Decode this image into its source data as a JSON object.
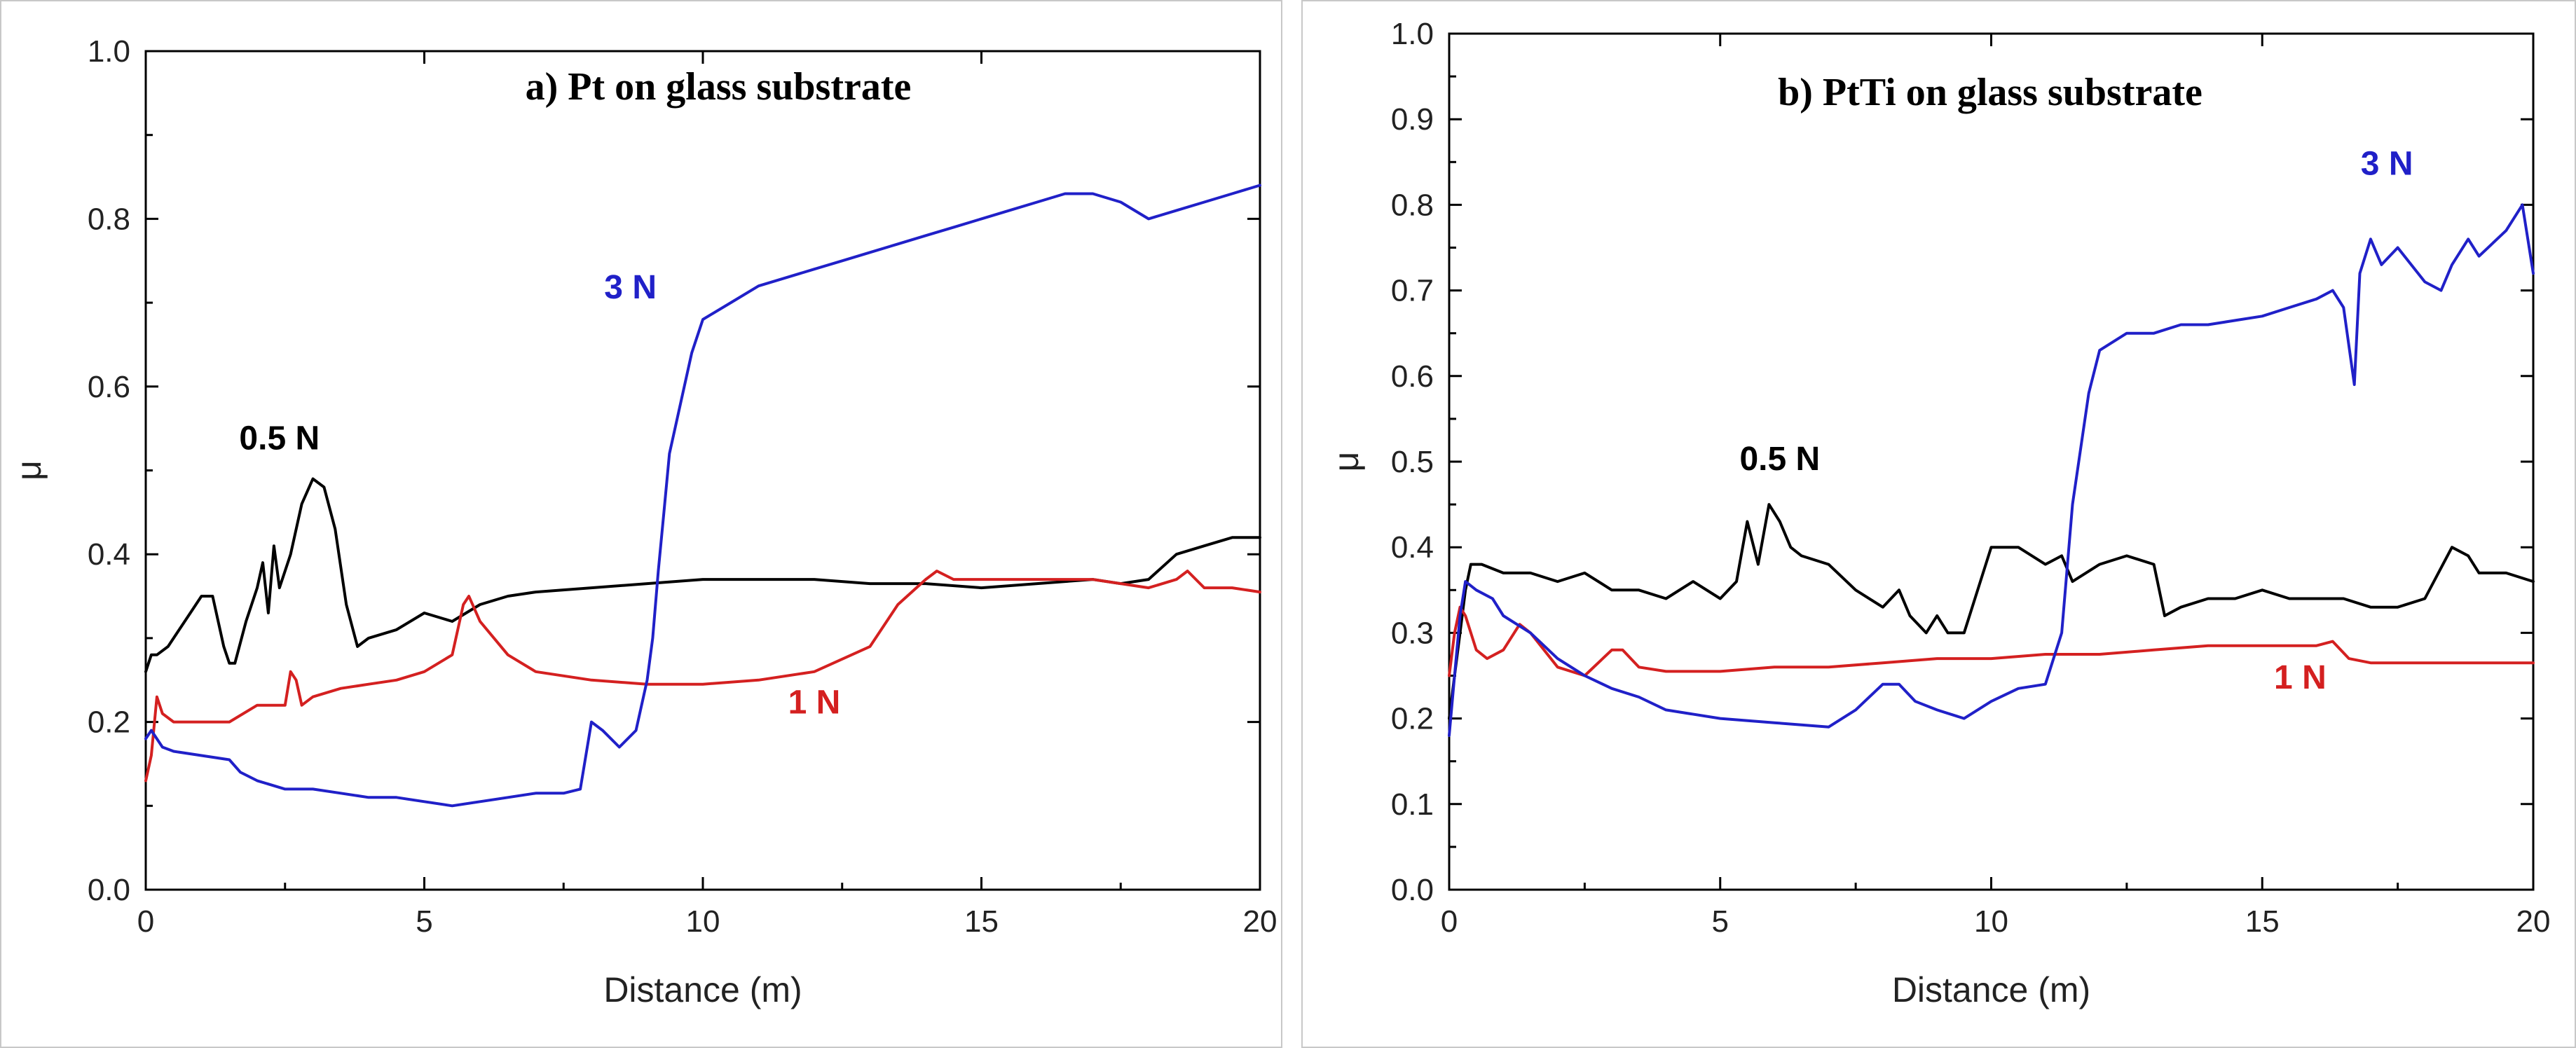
{
  "chart_data": [
    {
      "type": "line",
      "title": "a) Pt on glass substrate",
      "xlabel": "Distance (m)",
      "ylabel": "μ",
      "xlim": [
        0,
        20
      ],
      "ylim": [
        0.0,
        1.0
      ],
      "xticks": [
        "0",
        "5",
        "10",
        "15",
        "20"
      ],
      "yticks": [
        "0.0",
        "0.2",
        "0.4",
        "0.6",
        "0.8",
        "1.0"
      ],
      "grid": false,
      "series": [
        {
          "name": "0.5 N",
          "color": "#000000",
          "x": [
            0,
            0.1,
            0.2,
            0.4,
            0.6,
            0.8,
            1.0,
            1.2,
            1.4,
            1.5,
            1.6,
            1.8,
            2.0,
            2.1,
            2.2,
            2.3,
            2.4,
            2.6,
            2.8,
            3.0,
            3.2,
            3.4,
            3.6,
            3.8,
            4.0,
            4.5,
            5.0,
            5.5,
            6.0,
            6.5,
            7.0,
            8.0,
            9.0,
            10.0,
            11.0,
            12.0,
            13.0,
            14.0,
            15.0,
            16.0,
            17.0,
            17.5,
            18.0,
            18.5,
            19.0,
            19.5,
            20.0
          ],
          "y": [
            0.26,
            0.28,
            0.28,
            0.29,
            0.31,
            0.33,
            0.35,
            0.35,
            0.29,
            0.27,
            0.27,
            0.32,
            0.36,
            0.39,
            0.33,
            0.41,
            0.36,
            0.4,
            0.46,
            0.49,
            0.48,
            0.43,
            0.34,
            0.29,
            0.3,
            0.31,
            0.33,
            0.32,
            0.34,
            0.35,
            0.355,
            0.36,
            0.365,
            0.37,
            0.37,
            0.37,
            0.365,
            0.365,
            0.36,
            0.365,
            0.37,
            0.365,
            0.37,
            0.4,
            0.41,
            0.42,
            0.42
          ]
        },
        {
          "name": "1 N",
          "color": "#d42020",
          "x": [
            0,
            0.1,
            0.2,
            0.3,
            0.5,
            1.0,
            1.5,
            2.0,
            2.5,
            2.6,
            2.7,
            2.8,
            3.0,
            3.5,
            4.0,
            4.5,
            5.0,
            5.5,
            5.7,
            5.8,
            6.0,
            6.5,
            7.0,
            7.5,
            8.0,
            9.0,
            10.0,
            11.0,
            12.0,
            13.0,
            13.5,
            14.0,
            14.2,
            14.5,
            15.0,
            16.0,
            17.0,
            18.0,
            18.5,
            18.7,
            19.0,
            19.5,
            20.0
          ],
          "y": [
            0.13,
            0.16,
            0.23,
            0.21,
            0.2,
            0.2,
            0.2,
            0.22,
            0.22,
            0.26,
            0.25,
            0.22,
            0.23,
            0.24,
            0.245,
            0.25,
            0.26,
            0.28,
            0.34,
            0.35,
            0.32,
            0.28,
            0.26,
            0.255,
            0.25,
            0.245,
            0.245,
            0.25,
            0.26,
            0.29,
            0.34,
            0.37,
            0.38,
            0.37,
            0.37,
            0.37,
            0.37,
            0.36,
            0.37,
            0.38,
            0.36,
            0.36,
            0.355
          ]
        },
        {
          "name": "3 N",
          "color": "#2020c8",
          "x": [
            0,
            0.1,
            0.3,
            0.5,
            1.0,
            1.5,
            1.7,
            2.0,
            2.5,
            3.0,
            3.5,
            4.0,
            4.5,
            5.0,
            5.5,
            6.0,
            6.5,
            7.0,
            7.5,
            7.8,
            8.0,
            8.2,
            8.5,
            8.8,
            9.0,
            9.1,
            9.2,
            9.3,
            9.4,
            9.6,
            9.8,
            10.0,
            10.5,
            11.0,
            11.5,
            12.0,
            12.5,
            13.0,
            13.5,
            14.0,
            14.5,
            15.0,
            15.5,
            16.0,
            16.5,
            17.0,
            17.5,
            18.0,
            18.5,
            19.0,
            19.5,
            20.0
          ],
          "y": [
            0.18,
            0.19,
            0.17,
            0.165,
            0.16,
            0.155,
            0.14,
            0.13,
            0.12,
            0.12,
            0.115,
            0.11,
            0.11,
            0.105,
            0.1,
            0.105,
            0.11,
            0.115,
            0.115,
            0.12,
            0.2,
            0.19,
            0.17,
            0.19,
            0.25,
            0.3,
            0.38,
            0.45,
            0.52,
            0.58,
            0.64,
            0.68,
            0.7,
            0.72,
            0.73,
            0.74,
            0.75,
            0.76,
            0.77,
            0.78,
            0.79,
            0.8,
            0.81,
            0.82,
            0.83,
            0.83,
            0.82,
            0.8,
            0.81,
            0.82,
            0.83,
            0.84
          ]
        }
      ],
      "labels": [
        {
          "text": "0.5 N",
          "series": "0.5 N",
          "x": 2.4,
          "y": 0.525
        },
        {
          "text": "1 N",
          "series": "1 N",
          "x": 12.0,
          "y": 0.21
        },
        {
          "text": "3 N",
          "series": "3 N",
          "x": 8.7,
          "y": 0.705
        }
      ]
    },
    {
      "type": "line",
      "title": "b) PtTi on glass substrate",
      "xlabel": "Distance (m)",
      "ylabel": "μ",
      "xlim": [
        0,
        20
      ],
      "ylim": [
        0.0,
        1.0
      ],
      "xticks": [
        "0",
        "5",
        "10",
        "15",
        "20"
      ],
      "yticks": [
        "0.0",
        "0.1",
        "0.2",
        "0.3",
        "0.4",
        "0.5",
        "0.6",
        "0.7",
        "0.8",
        "0.9",
        "1.0"
      ],
      "grid": false,
      "series": [
        {
          "name": "0.5 N",
          "color": "#000000",
          "x": [
            0,
            0.1,
            0.2,
            0.3,
            0.4,
            0.6,
            1.0,
            1.5,
            2.0,
            2.5,
            3.0,
            3.5,
            4.0,
            4.5,
            5.0,
            5.3,
            5.5,
            5.7,
            5.9,
            6.1,
            6.3,
            6.5,
            7.0,
            7.5,
            8.0,
            8.3,
            8.5,
            8.8,
            9.0,
            9.2,
            9.5,
            10.0,
            10.5,
            11.0,
            11.3,
            11.5,
            12.0,
            12.5,
            13.0,
            13.2,
            13.5,
            14.0,
            14.5,
            15.0,
            15.5,
            16.0,
            16.5,
            17.0,
            17.5,
            18.0,
            18.5,
            18.8,
            19.0,
            19.5,
            20.0
          ],
          "y": [
            0.2,
            0.25,
            0.3,
            0.35,
            0.38,
            0.38,
            0.37,
            0.37,
            0.36,
            0.37,
            0.35,
            0.35,
            0.34,
            0.36,
            0.34,
            0.36,
            0.43,
            0.38,
            0.45,
            0.43,
            0.4,
            0.39,
            0.38,
            0.35,
            0.33,
            0.35,
            0.32,
            0.3,
            0.32,
            0.3,
            0.3,
            0.4,
            0.4,
            0.38,
            0.39,
            0.36,
            0.38,
            0.39,
            0.38,
            0.32,
            0.33,
            0.34,
            0.34,
            0.35,
            0.34,
            0.34,
            0.34,
            0.33,
            0.33,
            0.34,
            0.4,
            0.39,
            0.37,
            0.37,
            0.36
          ]
        },
        {
          "name": "1 N",
          "color": "#d42020",
          "x": [
            0,
            0.1,
            0.2,
            0.3,
            0.5,
            0.7,
            1.0,
            1.3,
            1.5,
            2.0,
            2.5,
            3.0,
            3.2,
            3.5,
            4.0,
            5.0,
            6.0,
            7.0,
            8.0,
            9.0,
            10.0,
            11.0,
            12.0,
            13.0,
            14.0,
            15.0,
            16.0,
            16.3,
            16.6,
            17.0,
            18.0,
            19.0,
            20.0
          ],
          "y": [
            0.25,
            0.3,
            0.33,
            0.32,
            0.28,
            0.27,
            0.28,
            0.31,
            0.3,
            0.26,
            0.25,
            0.28,
            0.28,
            0.26,
            0.255,
            0.255,
            0.26,
            0.26,
            0.265,
            0.27,
            0.27,
            0.275,
            0.275,
            0.28,
            0.285,
            0.285,
            0.285,
            0.29,
            0.27,
            0.265,
            0.265,
            0.265,
            0.265
          ]
        },
        {
          "name": "3 N",
          "color": "#2020c8",
          "x": [
            0,
            0.1,
            0.2,
            0.3,
            0.5,
            0.8,
            1.0,
            1.5,
            2.0,
            2.5,
            3.0,
            3.5,
            4.0,
            5.0,
            6.0,
            7.0,
            7.5,
            8.0,
            8.3,
            8.6,
            9.0,
            9.5,
            10.0,
            10.5,
            11.0,
            11.3,
            11.5,
            11.8,
            12.0,
            12.5,
            13.0,
            13.5,
            14.0,
            14.5,
            15.0,
            15.5,
            16.0,
            16.3,
            16.5,
            16.7,
            16.8,
            17.0,
            17.2,
            17.5,
            18.0,
            18.3,
            18.5,
            18.8,
            19.0,
            19.5,
            19.8,
            20.0
          ],
          "y": [
            0.18,
            0.25,
            0.32,
            0.36,
            0.35,
            0.34,
            0.32,
            0.3,
            0.27,
            0.25,
            0.235,
            0.225,
            0.21,
            0.2,
            0.195,
            0.19,
            0.21,
            0.24,
            0.24,
            0.22,
            0.21,
            0.2,
            0.22,
            0.235,
            0.24,
            0.3,
            0.45,
            0.58,
            0.63,
            0.65,
            0.65,
            0.66,
            0.66,
            0.665,
            0.67,
            0.68,
            0.69,
            0.7,
            0.68,
            0.59,
            0.72,
            0.76,
            0.73,
            0.75,
            0.71,
            0.7,
            0.73,
            0.76,
            0.74,
            0.77,
            0.8,
            0.72
          ]
        }
      ],
      "labels": [
        {
          "text": "0.5 N",
          "series": "0.5 N",
          "x": 6.1,
          "y": 0.49
        },
        {
          "text": "1 N",
          "series": "1 N",
          "x": 15.7,
          "y": 0.235
        },
        {
          "text": "3 N",
          "series": "3 N",
          "x": 17.3,
          "y": 0.835
        }
      ]
    }
  ]
}
